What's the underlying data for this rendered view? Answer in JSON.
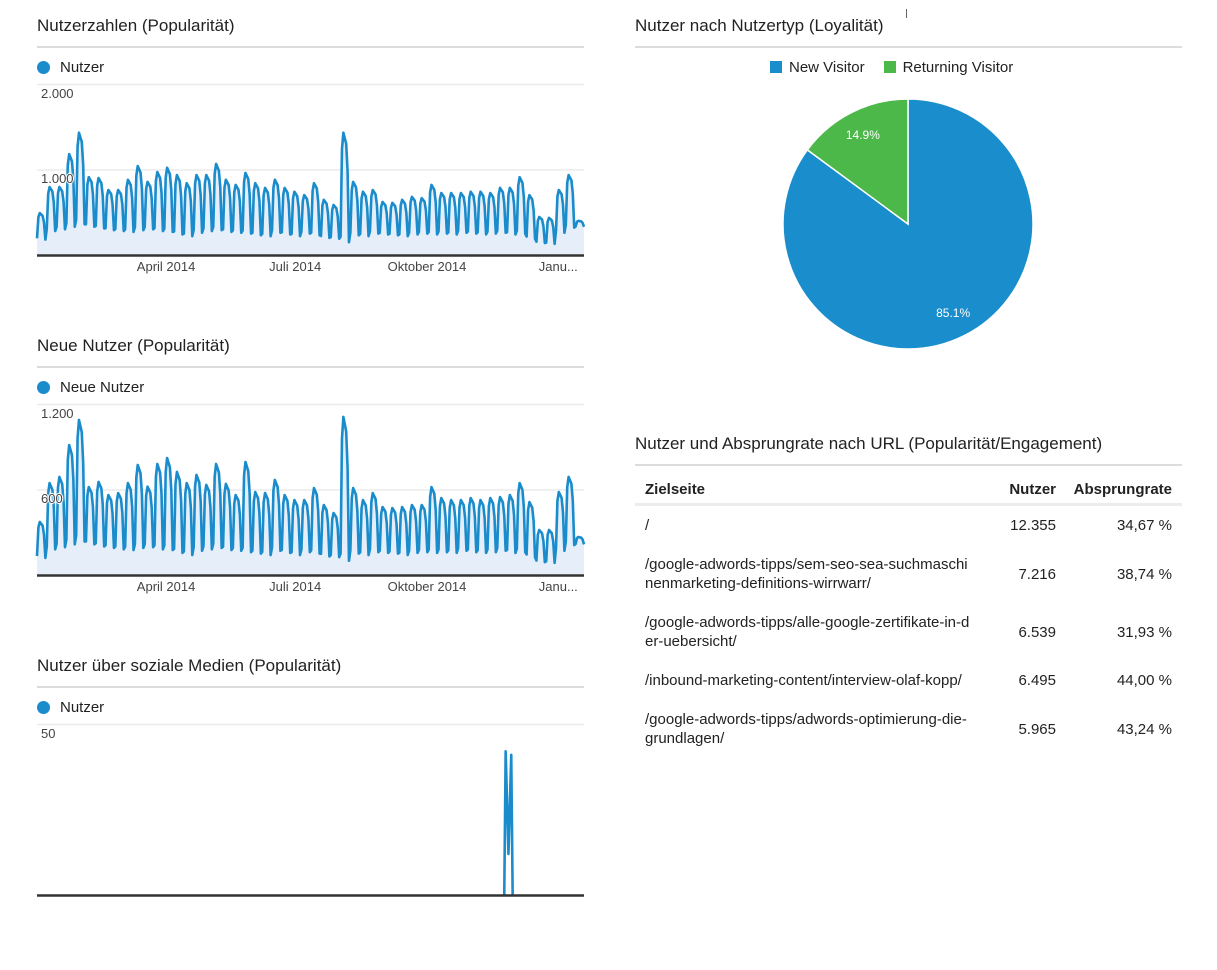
{
  "colors": {
    "series_blue": "#1a8ccc",
    "area_fill": "#e6eff9",
    "axis": "#333333",
    "grid": "#ebebeb",
    "separator": "#dcdcdc"
  },
  "chart_data": [
    {
      "type": "line",
      "title": "Nutzerzahlen (Popularität)",
      "xlabel": "",
      "ylabel": "",
      "x_range": [
        "2014-01-01",
        "2015-01-27"
      ],
      "x_ticks": [
        {
          "label": "April 2014",
          "pos": 0.236
        },
        {
          "label": "Juli 2014",
          "pos": 0.472
        },
        {
          "label": "Oktober 2014",
          "pos": 0.713
        },
        {
          "label": "Janu...",
          "pos": 0.953
        }
      ],
      "y_ticks": [
        {
          "label": "2.000",
          "value": 2000
        },
        {
          "label": "1.000",
          "value": 1000
        }
      ],
      "ylim": [
        0,
        2000
      ],
      "grid": true,
      "legend_position": "top",
      "granularity": "daily, weekly cycle (weekday highs, weekend lows)",
      "daily_profile": [
        0.05,
        0.85,
        1.0,
        0.95,
        0.9,
        0.65,
        0.0
      ],
      "series": [
        {
          "name": "Nutzer",
          "color": "#1a8ccc",
          "weekly_highs": [
            490,
            795,
            795,
            1180,
            1430,
            910,
            900,
            760,
            760,
            880,
            1040,
            855,
            970,
            1020,
            935,
            840,
            935,
            935,
            1065,
            880,
            820,
            960,
            840,
            785,
            880,
            785,
            740,
            700,
            840,
            645,
            585,
            1430,
            855,
            740,
            760,
            620,
            610,
            645,
            680,
            665,
            820,
            725,
            725,
            725,
            740,
            740,
            725,
            785,
            785,
            910,
            700,
            445,
            435,
            760,
            935,
            400
          ],
          "weekly_lows": [
            180,
            280,
            300,
            330,
            360,
            330,
            310,
            290,
            280,
            270,
            290,
            300,
            280,
            270,
            240,
            220,
            260,
            280,
            290,
            270,
            260,
            250,
            230,
            220,
            260,
            240,
            220,
            250,
            230,
            200,
            190,
            150,
            230,
            220,
            250,
            240,
            230,
            220,
            240,
            250,
            240,
            250,
            240,
            260,
            250,
            240,
            250,
            260,
            240,
            250,
            190,
            140,
            130,
            260,
            320,
            330
          ]
        }
      ]
    },
    {
      "type": "line",
      "title": "Neue Nutzer (Popularität)",
      "xlabel": "",
      "ylabel": "",
      "x_range": [
        "2014-01-01",
        "2015-01-27"
      ],
      "x_ticks": [
        {
          "label": "April 2014",
          "pos": 0.236
        },
        {
          "label": "Juli 2014",
          "pos": 0.472
        },
        {
          "label": "Oktober 2014",
          "pos": 0.713
        },
        {
          "label": "Janu...",
          "pos": 0.953
        }
      ],
      "y_ticks": [
        {
          "label": "1.200",
          "value": 1200
        },
        {
          "label": "600",
          "value": 600
        }
      ],
      "ylim": [
        0,
        1200
      ],
      "grid": true,
      "legend_position": "top",
      "granularity": "daily, weekly cycle (weekday highs, weekend lows)",
      "daily_profile": [
        0.05,
        0.85,
        1.0,
        0.95,
        0.9,
        0.65,
        0.0
      ],
      "series": [
        {
          "name": "Neue Nutzer",
          "color": "#1a8ccc",
          "weekly_highs": [
            372,
            645,
            688,
            912,
            1088,
            617,
            653,
            561,
            575,
            645,
            772,
            620,
            779,
            821,
            723,
            645,
            702,
            632,
            779,
            639,
            561,
            793,
            582,
            575,
            667,
            561,
            526,
            526,
            610,
            491,
            435,
            1109,
            610,
            526,
            575,
            477,
            470,
            477,
            491,
            491,
            617,
            540,
            526,
            526,
            540,
            526,
            540,
            547,
            561,
            645,
            512,
            316,
            316,
            582,
            688,
            267
          ],
          "weekly_lows": [
            120,
            180,
            195,
            215,
            235,
            215,
            200,
            190,
            180,
            175,
            190,
            195,
            180,
            175,
            155,
            140,
            170,
            180,
            190,
            175,
            170,
            160,
            150,
            140,
            170,
            155,
            140,
            160,
            150,
            130,
            125,
            100,
            150,
            140,
            160,
            155,
            150,
            140,
            155,
            160,
            155,
            160,
            155,
            170,
            160,
            155,
            160,
            170,
            155,
            160,
            125,
            90,
            85,
            170,
            210,
            215
          ]
        }
      ]
    },
    {
      "type": "line",
      "title": "Nutzer über soziale Medien (Popularität)",
      "xlabel": "",
      "ylabel": "",
      "x_range": [
        "2014-01-01",
        "2015-01-27"
      ],
      "y_ticks": [
        {
          "label": "50",
          "value": 50
        }
      ],
      "ylim": [
        0,
        50
      ],
      "grid": true,
      "legend_position": "top",
      "series": [
        {
          "name": "Nutzer",
          "color": "#1a8ccc",
          "points": [
            {
              "date": "2014-12-01",
              "value": 0
            },
            {
              "date": "2014-12-02",
              "value": 42
            },
            {
              "date": "2014-12-04",
              "value": 12
            },
            {
              "date": "2014-12-06",
              "value": 41
            },
            {
              "date": "2014-12-07",
              "value": 0
            }
          ]
        }
      ]
    },
    {
      "type": "pie",
      "title": "Nutzer nach Nutzertyp (Loyalität)",
      "categories": [
        "New Visitor",
        "Returning Visitor"
      ],
      "values": [
        85.1,
        14.9
      ],
      "labels": [
        "85.1%",
        "14.9%"
      ],
      "colors": [
        "#1a8dcc",
        "#4cb849"
      ],
      "legend_position": "top"
    },
    {
      "type": "table",
      "title": "Nutzer und Absprungrate nach URL (Popularität/Engagement)",
      "columns": [
        "Zielseite",
        "Nutzer",
        "Absprungrate"
      ],
      "rows": [
        [
          "/",
          "12.355",
          "34,67 %"
        ],
        [
          "/google-adwords-tipps/sem-seo-sea-suchmaschinenmarketing-definitions-wirrwarr/",
          "7.216",
          "38,74 %"
        ],
        [
          "/google-adwords-tipps/alle-google-zertifikate-in-der-uebersicht/",
          "6.539",
          "31,93 %"
        ],
        [
          "/inbound-marketing-content/interview-olaf-kopp/",
          "6.495",
          "44,00 %"
        ],
        [
          "/google-adwords-tipps/adwords-optimierung-die-grundlagen/",
          "5.965",
          "43,24 %"
        ]
      ]
    }
  ]
}
